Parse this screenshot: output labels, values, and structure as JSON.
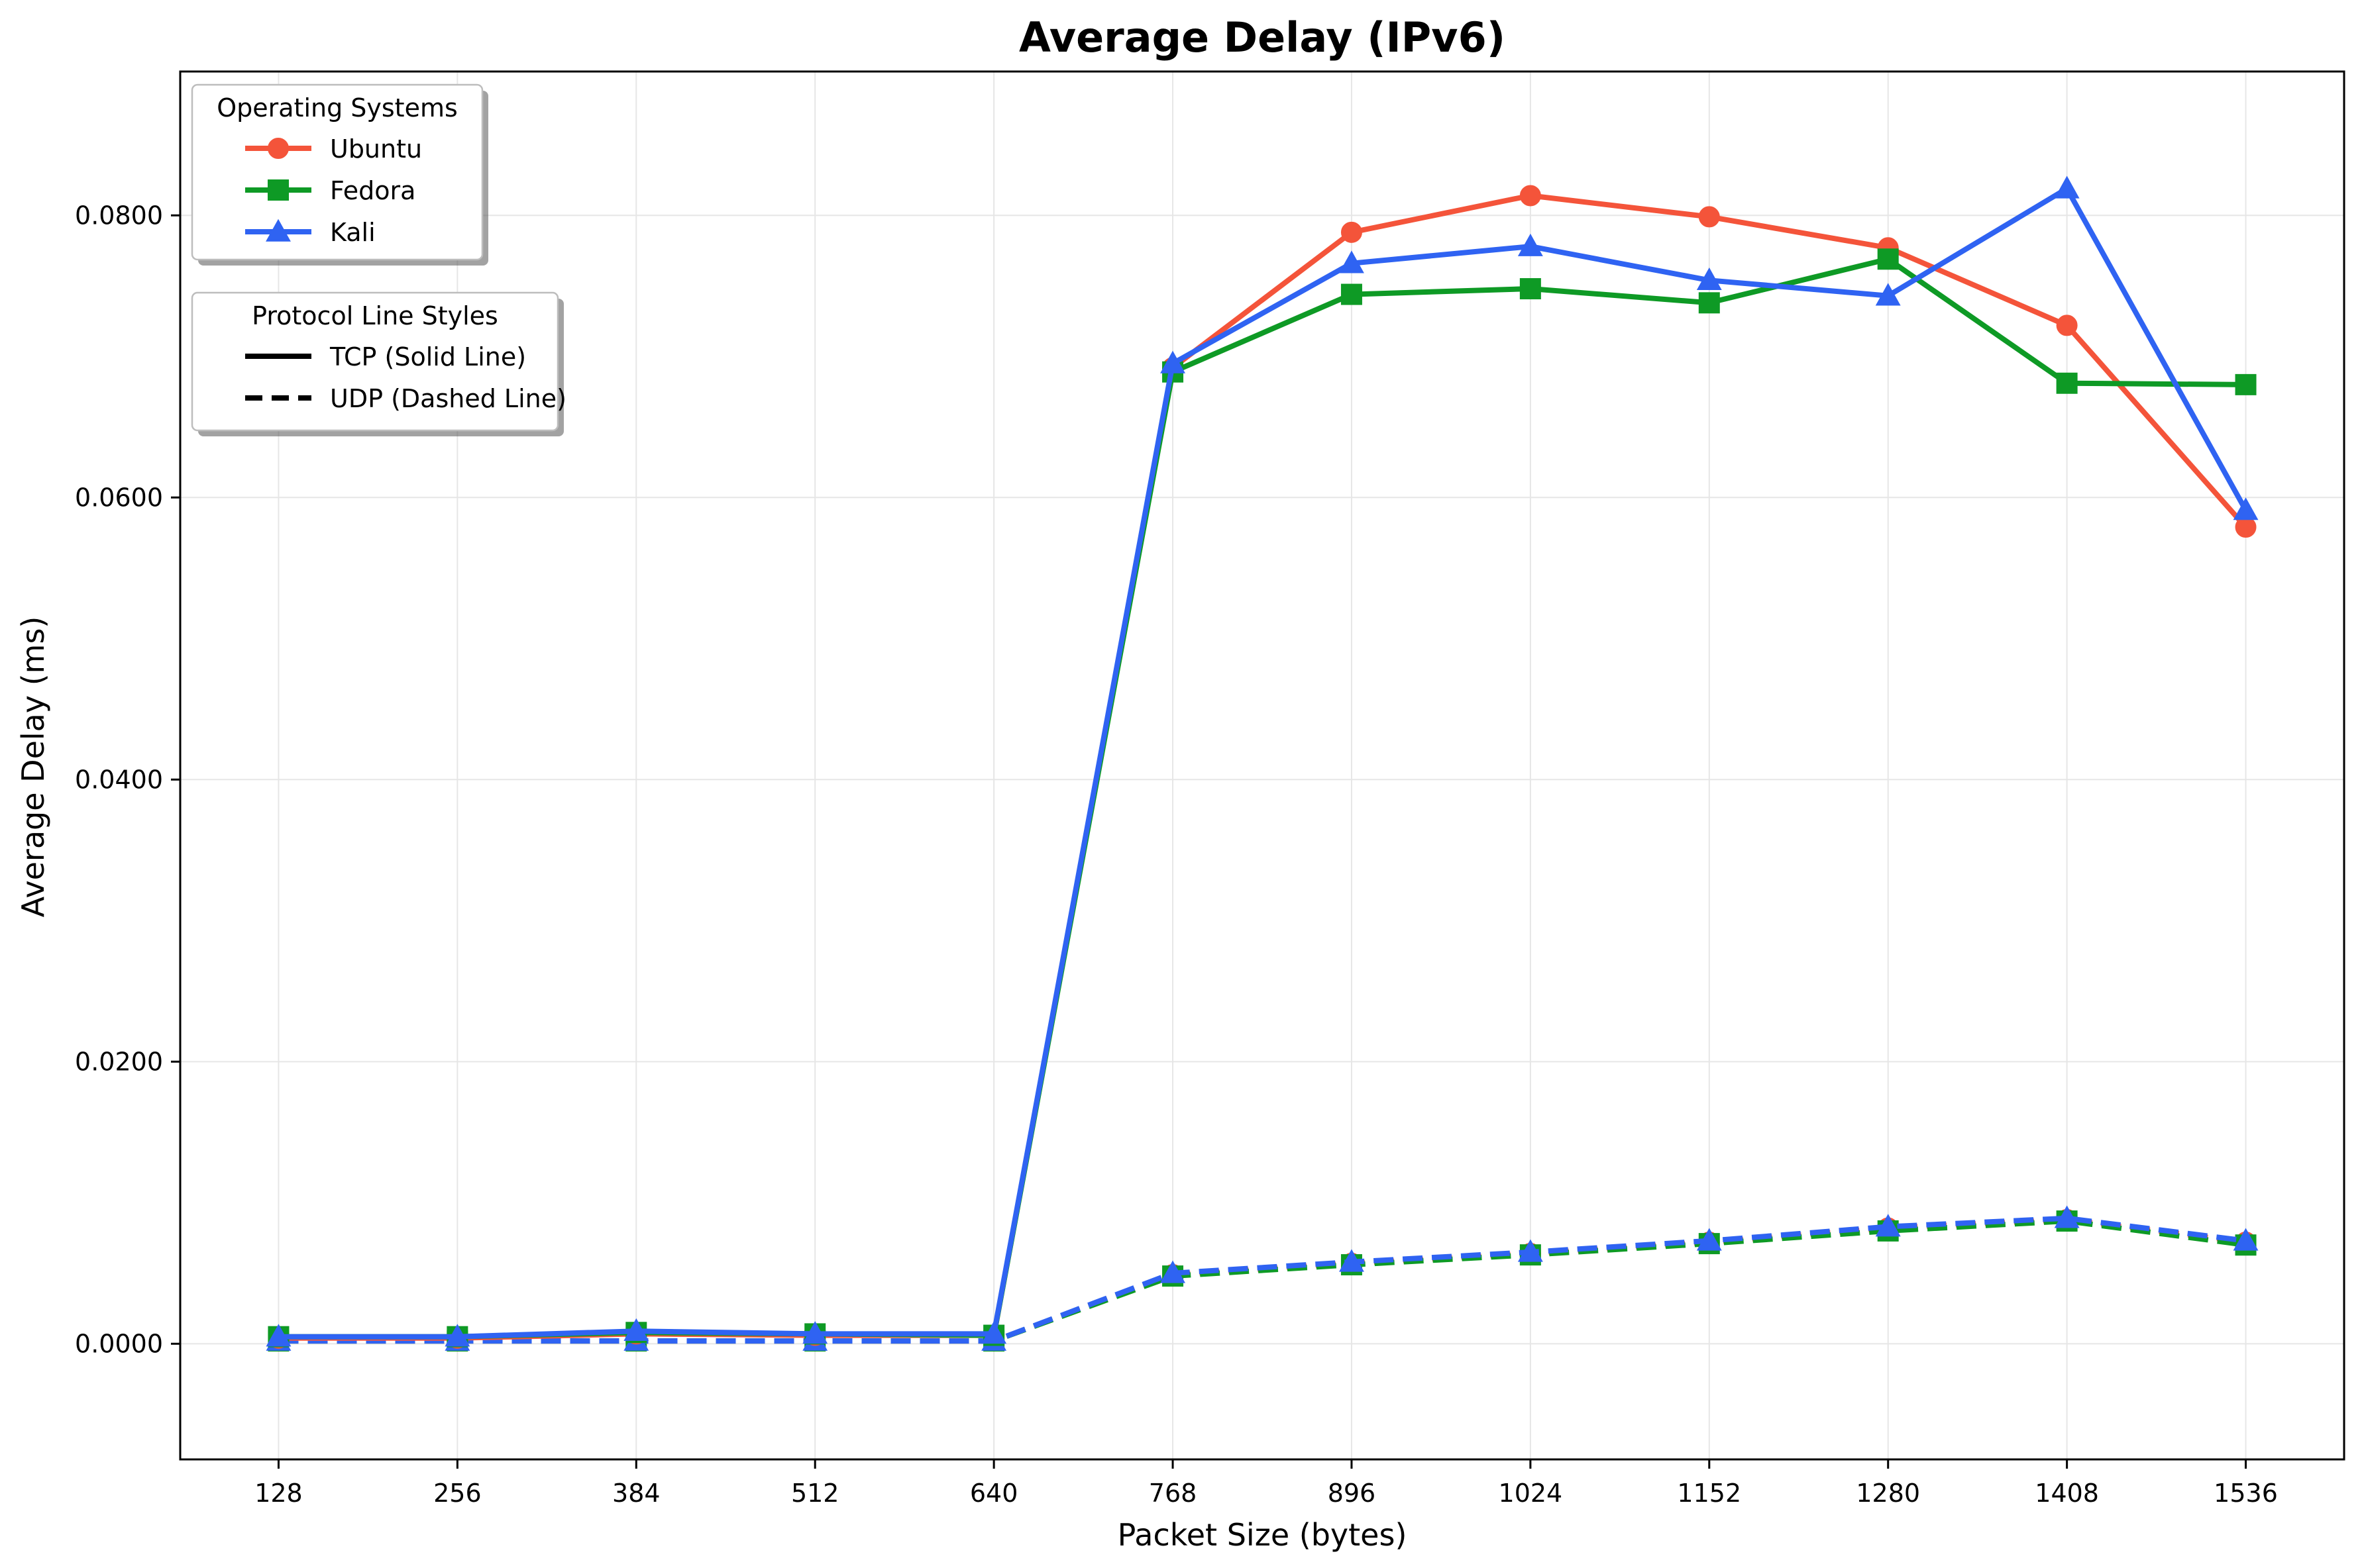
{
  "chart_data": {
    "type": "line",
    "title": "Average Delay (IPv6)",
    "xlabel": "Packet Size (bytes)",
    "ylabel": "Average Delay (ms)",
    "x": [
      128,
      256,
      384,
      512,
      640,
      768,
      896,
      1024,
      1152,
      1280,
      1408,
      1536
    ],
    "x_tick_labels": [
      "128",
      "256",
      "384",
      "512",
      "640",
      "768",
      "896",
      "1024",
      "1152",
      "1280",
      "1408",
      "1536"
    ],
    "ylim": [
      -0.0082,
      0.0902
    ],
    "y_ticks": [
      0.0,
      0.02,
      0.04,
      0.06,
      0.08
    ],
    "y_tick_labels": [
      "0.0000",
      "0.0200",
      "0.0400",
      "0.0600",
      "0.0800"
    ],
    "grid": true,
    "series": [
      {
        "name": "Ubuntu",
        "protocol": "TCP",
        "color": "#f4543a",
        "marker": "circle",
        "dash": "solid",
        "values": [
          0.0004,
          0.0004,
          0.0007,
          0.0006,
          0.0006,
          0.0692,
          0.0788,
          0.0814,
          0.0799,
          0.0777,
          0.0722,
          0.0579
        ]
      },
      {
        "name": "Fedora",
        "protocol": "TCP",
        "color": "#0e9a25",
        "marker": "square",
        "dash": "solid",
        "values": [
          0.0005,
          0.0005,
          0.0008,
          0.0007,
          0.0006,
          0.0689,
          0.0744,
          0.0748,
          0.0738,
          0.0769,
          0.0681,
          0.068
        ]
      },
      {
        "name": "Kali",
        "protocol": "TCP",
        "color": "#2f63f2",
        "marker": "triangle",
        "dash": "solid",
        "values": [
          0.0005,
          0.0005,
          0.0009,
          0.0007,
          0.0007,
          0.0695,
          0.0766,
          0.0778,
          0.0754,
          0.0743,
          0.0819,
          0.0591
        ]
      },
      {
        "name": "Ubuntu",
        "protocol": "UDP",
        "color": "#f4543a",
        "marker": "circle",
        "dash": "dashed",
        "values": [
          0.0002,
          0.0002,
          0.0002,
          0.0002,
          0.0002,
          0.0049,
          0.0057,
          0.0064,
          0.0072,
          0.0082,
          0.0088,
          0.0072
        ]
      },
      {
        "name": "Fedora",
        "protocol": "UDP",
        "color": "#0e9a25",
        "marker": "square",
        "dash": "dashed",
        "values": [
          0.0002,
          0.0002,
          0.0002,
          0.0002,
          0.0002,
          0.0048,
          0.0056,
          0.0063,
          0.0071,
          0.008,
          0.0087,
          0.007
        ]
      },
      {
        "name": "Kali",
        "protocol": "UDP",
        "color": "#2f63f2",
        "marker": "triangle",
        "dash": "dashed",
        "values": [
          0.0002,
          0.0002,
          0.0002,
          0.0002,
          0.0002,
          0.005,
          0.0058,
          0.0065,
          0.0073,
          0.0083,
          0.0089,
          0.0073
        ]
      }
    ],
    "legends": [
      {
        "title": "Operating Systems",
        "placement": "upper-left",
        "entries": [
          {
            "label": "Ubuntu",
            "color": "#f4543a",
            "marker": "circle",
            "dash": "solid"
          },
          {
            "label": "Fedora",
            "color": "#0e9a25",
            "marker": "square",
            "dash": "solid"
          },
          {
            "label": "Kali",
            "color": "#2f63f2",
            "marker": "triangle",
            "dash": "solid"
          }
        ]
      },
      {
        "title": "Protocol Line Styles",
        "placement": "upper-left-below",
        "entries": [
          {
            "label": "TCP (Solid Line)",
            "color": "#000000",
            "dash": "solid"
          },
          {
            "label": "UDP (Dashed Line)",
            "color": "#000000",
            "dash": "dashed"
          }
        ]
      }
    ]
  }
}
